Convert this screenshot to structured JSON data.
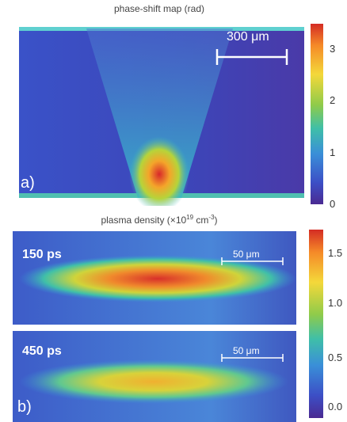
{
  "panel_a": {
    "title": "phase-shift map (rad)",
    "label": "a)",
    "scale_bar": "300 μm",
    "colorbar_ticks": [
      "3",
      "2",
      "1",
      "0"
    ]
  },
  "panel_b": {
    "title": {
      "text": "plasma density (×10",
      "exp": "19",
      "unit": " cm",
      "unit_exp": "-3",
      "close": ")"
    },
    "label": "b)",
    "frames": [
      {
        "time": "150 ps",
        "scale_bar": "50 μm"
      },
      {
        "time": "450 ps",
        "scale_bar": "50 μm"
      }
    ],
    "colorbar_ticks": [
      "1.5",
      "1.0",
      "0.5",
      "0.0"
    ]
  }
}
